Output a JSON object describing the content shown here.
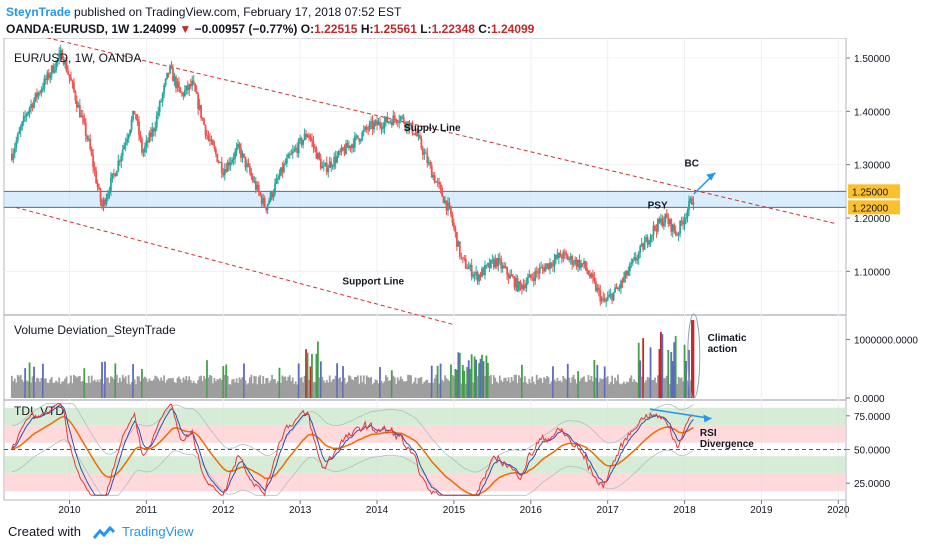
{
  "header": {
    "author": "SteynTrade",
    "published": "published on TradingView.com, February 17, 2018 07:52 EST",
    "symbol": "OANDA:EURUSD, 1W",
    "last": "1.24099",
    "change": "−0.00957 (−0.77%)",
    "o_label": "O:",
    "o_value": "1.22515",
    "h_label": "H:",
    "h_value": "1.25561",
    "l_label": "L:",
    "l_value": "1.22348",
    "c_label": "C:",
    "c_value": "1.24099"
  },
  "footer": {
    "created_with": "Created with",
    "brand": "TradingView"
  },
  "colors": {
    "up": "#26a69a",
    "down": "#ef5350",
    "trendline": "#d32f2f",
    "zone": "#bbdefb",
    "arrow": "#2196f3",
    "price_tag": "#fbc02d",
    "band_green": "#c8e6c9",
    "band_red": "#ffcdd2"
  },
  "chart_data": [
    {
      "type": "candlestick",
      "title": "EUR/USD, 1W, OANDA",
      "ylim": [
        1.02,
        1.53
      ],
      "yticks": [
        1.5,
        1.4,
        1.3,
        1.2,
        1.1
      ],
      "ytick_labels": [
        "1.50000",
        "1.40000",
        "1.30000",
        "1.20000",
        "1.10000"
      ],
      "xticks": [
        "2010",
        "2011",
        "2012",
        "2013",
        "2014",
        "2015",
        "2016",
        "2017",
        "2018",
        "2019",
        "2020"
      ],
      "x_range": [
        2009.2,
        2020.1
      ],
      "close_path": [
        [
          2009.25,
          1.32
        ],
        [
          2009.45,
          1.4
        ],
        [
          2009.7,
          1.46
        ],
        [
          2009.9,
          1.51
        ],
        [
          2010.05,
          1.44
        ],
        [
          2010.25,
          1.34
        ],
        [
          2010.42,
          1.22
        ],
        [
          2010.6,
          1.29
        ],
        [
          2010.85,
          1.4
        ],
        [
          2010.95,
          1.32
        ],
        [
          2011.1,
          1.37
        ],
        [
          2011.3,
          1.48
        ],
        [
          2011.45,
          1.43
        ],
        [
          2011.6,
          1.45
        ],
        [
          2011.8,
          1.35
        ],
        [
          2012.0,
          1.29
        ],
        [
          2012.2,
          1.33
        ],
        [
          2012.45,
          1.25
        ],
        [
          2012.55,
          1.22
        ],
        [
          2012.8,
          1.3
        ],
        [
          2013.1,
          1.36
        ],
        [
          2013.3,
          1.29
        ],
        [
          2013.6,
          1.33
        ],
        [
          2013.9,
          1.37
        ],
        [
          2014.3,
          1.39
        ],
        [
          2014.5,
          1.36
        ],
        [
          2014.7,
          1.29
        ],
        [
          2014.95,
          1.21
        ],
        [
          2015.1,
          1.12
        ],
        [
          2015.3,
          1.09
        ],
        [
          2015.55,
          1.12
        ],
        [
          2015.85,
          1.07
        ],
        [
          2016.1,
          1.1
        ],
        [
          2016.4,
          1.13
        ],
        [
          2016.7,
          1.11
        ],
        [
          2016.95,
          1.04
        ],
        [
          2017.15,
          1.07
        ],
        [
          2017.35,
          1.12
        ],
        [
          2017.6,
          1.18
        ],
        [
          2017.75,
          1.2
        ],
        [
          2017.9,
          1.17
        ],
        [
          2018.05,
          1.22
        ],
        [
          2018.12,
          1.241
        ]
      ],
      "horizontal_levels": [
        1.25,
        1.22
      ],
      "level_labels": [
        "1.25000",
        "1.22000"
      ],
      "supply_line": {
        "from": [
          2009.35,
          1.55
        ],
        "to": [
          2019.95,
          1.19
        ]
      },
      "support_line": {
        "from": [
          2009.3,
          1.22
        ],
        "to": [
          2015.0,
          1.0
        ]
      },
      "bc_arrow": {
        "from": [
          2018.12,
          1.245
        ],
        "to": [
          2018.4,
          1.285
        ]
      },
      "annotations": [
        {
          "text": "Supply Line",
          "x": 2014.35,
          "y": 1.363
        },
        {
          "text": "Support Line",
          "x": 2013.55,
          "y": 1.075
        },
        {
          "text": "BC",
          "x": 2018.0,
          "y": 1.297
        },
        {
          "text": "PSY",
          "x": 2017.52,
          "y": 1.218
        }
      ]
    },
    {
      "type": "bar",
      "title": "Volume Deviation_SteynTrade",
      "ylim": [
        0,
        1400000
      ],
      "ytick_labels": [
        "1000000.0000",
        "0.0000"
      ],
      "yticks": [
        1000000,
        0
      ],
      "bar_colors": {
        "normal": "#9e9e9e",
        "up": "#43a047",
        "down": "#c62828",
        "low": "#5c6bc0"
      },
      "annotations": [
        {
          "text": "Climatic",
          "x": 2018.3
        },
        {
          "text": "action",
          "x": 2018.3
        }
      ]
    },
    {
      "type": "line",
      "title": "TDI_VTD",
      "ylim": [
        14,
        86
      ],
      "yticks": [
        75,
        50,
        25
      ],
      "ytick_labels": [
        "75.0000",
        "50.0000",
        "25.0000"
      ],
      "bands": [
        {
          "from": 68,
          "to": 81,
          "color": "green"
        },
        {
          "from": 55,
          "to": 68,
          "color": "red"
        },
        {
          "from": 32,
          "to": 45,
          "color": "green"
        },
        {
          "from": 19,
          "to": 32,
          "color": "red"
        }
      ],
      "series": [
        {
          "name": "",
          "color": "#e53935"
        },
        {
          "name": "",
          "color": "#3949ab"
        },
        {
          "name": "",
          "color": "#ef6c00"
        }
      ],
      "annotations": [
        {
          "text": "RSI",
          "x": 2018.2
        },
        {
          "text": "Divergence",
          "x": 2018.2
        }
      ]
    }
  ]
}
